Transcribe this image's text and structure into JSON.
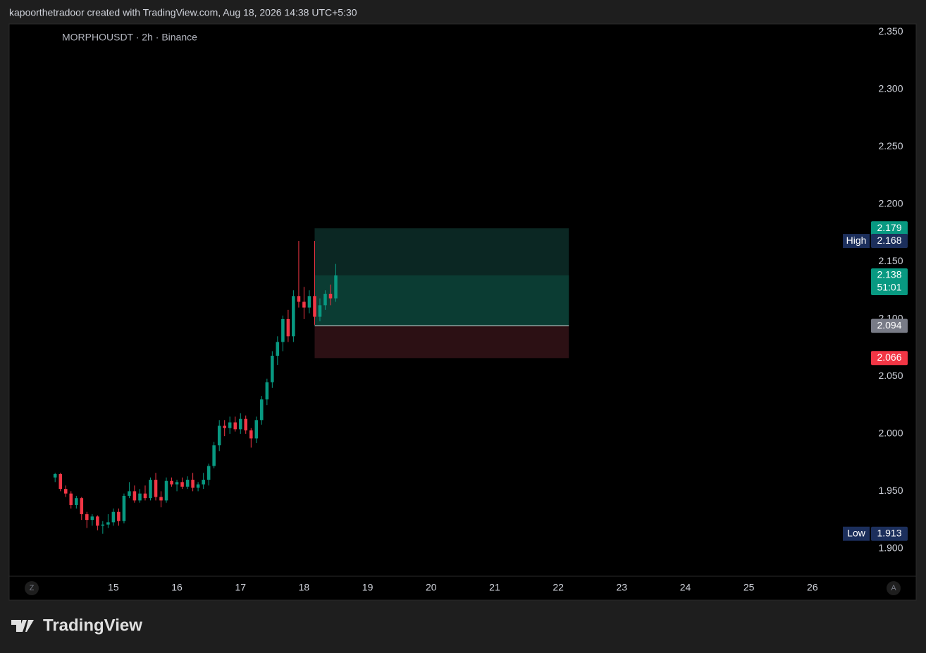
{
  "header": "kapoorthetradoor created with TradingView.com, Aug 18, 2026 14:38 UTC+5:30",
  "logo": "TradingView",
  "chart_data": {
    "type": "candlestick",
    "title": "MORPHOUSDT · 2h · Binance",
    "x": [
      14.083,
      14.167,
      14.25,
      14.333,
      14.417,
      14.5,
      14.583,
      14.667,
      14.75,
      14.833,
      14.917,
      15.0,
      15.083,
      15.167,
      15.25,
      15.333,
      15.417,
      15.5,
      15.583,
      15.667,
      15.75,
      15.833,
      15.917,
      16.0,
      16.083,
      16.167,
      16.25,
      16.333,
      16.417,
      16.5,
      16.583,
      16.667,
      16.75,
      16.833,
      16.917,
      17.0,
      17.083,
      17.167,
      17.25,
      17.333,
      17.417,
      17.5,
      17.583,
      17.667,
      17.75,
      17.833,
      17.917,
      18.0,
      18.083,
      18.167,
      18.25,
      18.333,
      18.417,
      18.5
    ],
    "open": [
      1.962,
      1.965,
      1.952,
      1.948,
      1.938,
      1.944,
      1.93,
      1.925,
      1.928,
      1.92,
      1.921,
      1.923,
      1.932,
      1.924,
      1.946,
      1.95,
      1.942,
      1.948,
      1.944,
      1.96,
      1.945,
      1.942,
      1.959,
      1.956,
      1.958,
      1.954,
      1.96,
      1.953,
      1.956,
      1.96,
      1.972,
      1.99,
      2.007,
      2.005,
      2.01,
      2.004,
      2.013,
      2.003,
      1.996,
      2.012,
      2.03,
      2.045,
      2.068,
      2.08,
      2.1,
      2.085,
      2.12,
      2.115,
      2.11,
      2.12,
      2.102,
      2.112,
      2.122,
      2.118
    ],
    "high": [
      1.966,
      1.966,
      1.955,
      1.95,
      1.946,
      1.945,
      1.932,
      1.93,
      1.929,
      1.924,
      1.93,
      1.935,
      1.935,
      1.948,
      1.958,
      1.955,
      1.952,
      1.955,
      1.962,
      1.966,
      1.95,
      1.962,
      1.962,
      1.96,
      1.962,
      1.963,
      1.966,
      1.958,
      1.966,
      1.974,
      1.993,
      2.012,
      2.012,
      2.015,
      2.015,
      2.018,
      2.016,
      2.005,
      2.015,
      2.033,
      2.048,
      2.072,
      2.085,
      2.103,
      2.108,
      2.125,
      2.168,
      2.128,
      2.125,
      2.168,
      2.118,
      2.125,
      2.13,
      2.148
    ],
    "low": [
      1.958,
      1.95,
      1.945,
      1.935,
      1.935,
      1.925,
      1.918,
      1.92,
      1.916,
      1.913,
      1.918,
      1.92,
      1.92,
      1.922,
      1.944,
      1.94,
      1.94,
      1.942,
      1.942,
      1.942,
      1.936,
      1.94,
      1.954,
      1.95,
      1.952,
      1.952,
      1.95,
      1.95,
      1.952,
      1.955,
      1.97,
      1.985,
      1.998,
      2.0,
      2.002,
      2.0,
      2.0,
      1.988,
      1.992,
      2.008,
      2.025,
      2.04,
      2.06,
      2.072,
      2.08,
      2.08,
      2.11,
      2.1,
      2.105,
      2.095,
      2.098,
      2.108,
      2.112,
      2.115
    ],
    "close": [
      1.965,
      1.952,
      1.948,
      1.938,
      1.944,
      1.93,
      1.925,
      1.928,
      1.92,
      1.921,
      1.923,
      1.932,
      1.924,
      1.946,
      1.95,
      1.942,
      1.948,
      1.944,
      1.96,
      1.945,
      1.942,
      1.959,
      1.956,
      1.958,
      1.954,
      1.96,
      1.953,
      1.956,
      1.96,
      1.972,
      1.99,
      2.007,
      2.005,
      2.01,
      2.004,
      2.013,
      2.003,
      1.996,
      2.012,
      2.03,
      2.045,
      2.068,
      2.08,
      2.1,
      2.085,
      2.12,
      2.115,
      2.11,
      2.12,
      2.102,
      2.112,
      2.122,
      2.118,
      2.138
    ],
    "up_color": "#089981",
    "down_color": "#f23645",
    "xlim": [
      13.36,
      26.9
    ],
    "xticks": [
      15,
      16,
      17,
      18,
      19,
      20,
      21,
      22,
      23,
      24,
      25,
      26
    ],
    "ylim": [
      1.876,
      2.357
    ],
    "yticks": [
      {
        "value": 1.9,
        "label": "1.900"
      },
      {
        "value": 1.95,
        "label": "1.950"
      },
      {
        "value": 2.0,
        "label": "2.000"
      },
      {
        "value": 2.05,
        "label": "2.050"
      },
      {
        "value": 2.1,
        "label": "2.100"
      },
      {
        "value": 2.15,
        "label": "2.150"
      },
      {
        "value": 2.2,
        "label": "2.200"
      },
      {
        "value": 2.25,
        "label": "2.250"
      },
      {
        "value": 2.3,
        "label": "2.300"
      },
      {
        "value": 2.35,
        "label": "2.350"
      }
    ],
    "position": {
      "x_start": 18.167,
      "x_end": 22.167,
      "target": 2.179,
      "entry": 2.094,
      "stop": 2.066
    },
    "price_labels": [
      {
        "value": 2.179,
        "color": "#089981"
      },
      {
        "value": 2.094,
        "color": "#787b86"
      },
      {
        "value": 2.066,
        "color": "#f23645"
      }
    ],
    "markers": [
      {
        "label": "High",
        "value": 2.168
      },
      {
        "label": "Low",
        "value": 1.913
      }
    ],
    "last_price": {
      "value": 2.138,
      "countdown": "51:01",
      "color": "#089981"
    },
    "axis_buttons": [
      "Z",
      "A"
    ]
  }
}
